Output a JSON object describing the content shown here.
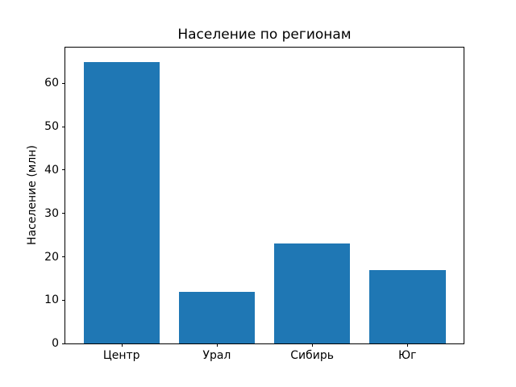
{
  "chart_data": {
    "type": "bar",
    "title": "Население по регионам",
    "xlabel": "",
    "ylabel": "Население (млн)",
    "categories": [
      "Центр",
      "Урал",
      "Сибирь",
      "Юг"
    ],
    "values": [
      65,
      12,
      23,
      17
    ],
    "yticks": [
      0,
      10,
      20,
      30,
      40,
      50,
      60
    ],
    "ylim": [
      0,
      68.25
    ],
    "xlim": [
      -0.59,
      3.59
    ],
    "bar_width": 0.8,
    "bar_color": "#1f77b4",
    "background_color": "#ffffff",
    "spine_color": "#000000",
    "grid": false,
    "legend": null
  }
}
